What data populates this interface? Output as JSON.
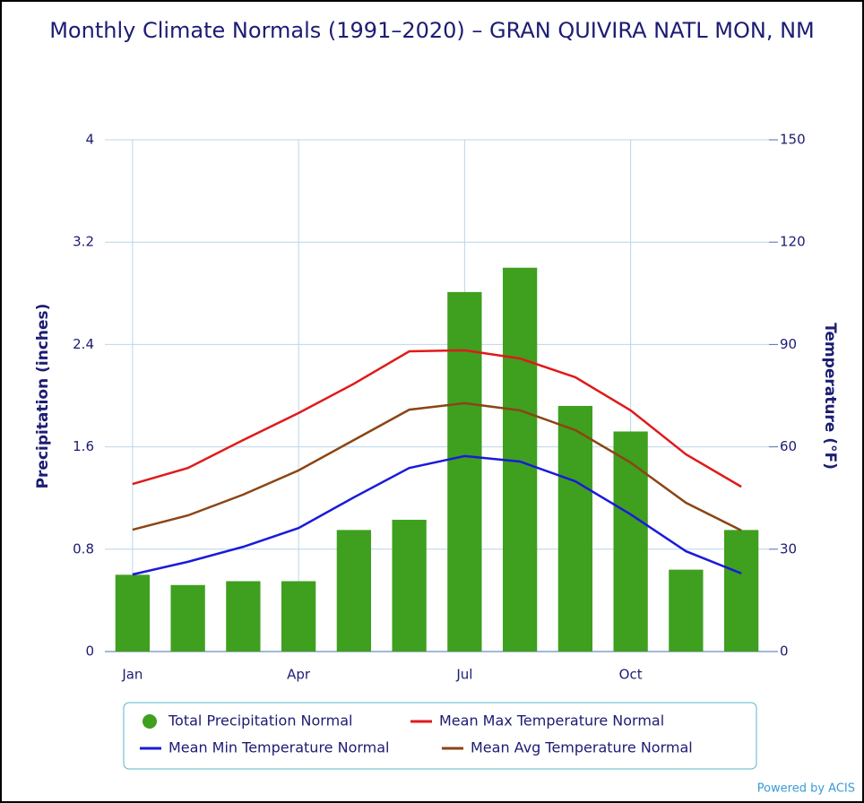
{
  "chart_data": {
    "type": "bar",
    "title": "Monthly Climate Normals (1991–2020) – GRAN QUIVIRA NATL MON, NM",
    "categories": [
      "Jan",
      null,
      null,
      "Apr",
      null,
      null,
      "Jul",
      null,
      null,
      "Oct",
      null,
      null
    ],
    "ylabel": "Precipitation (inches)",
    "y2label": "Temperature (°F)",
    "ylim": [
      0,
      4
    ],
    "yticks": [
      0,
      0.8,
      1.6,
      2.4,
      3.2,
      4
    ],
    "y2lim": [
      0,
      150
    ],
    "y2ticks": [
      0,
      30,
      60,
      90,
      120,
      150
    ],
    "grid": true,
    "series": [
      {
        "name": "Total Precipitation Normal",
        "type": "bar",
        "color": "#3f9f1f",
        "axis": "y",
        "values": [
          0.6,
          0.52,
          0.55,
          0.55,
          0.95,
          1.03,
          2.81,
          3.0,
          1.92,
          1.72,
          0.64,
          0.95
        ]
      },
      {
        "name": "Mean Max Temperature Normal",
        "type": "line",
        "color": "#e01a1a",
        "axis": "y2",
        "values": [
          49.1,
          53.8,
          62.0,
          69.9,
          78.5,
          88.0,
          88.3,
          85.9,
          80.4,
          70.7,
          57.8,
          48.3
        ]
      },
      {
        "name": "Mean Min Temperature Normal",
        "type": "line",
        "color": "#1a1adb",
        "axis": "y2",
        "values": [
          22.6,
          26.3,
          30.7,
          36.2,
          45.2,
          53.8,
          57.3,
          55.7,
          49.9,
          40.2,
          29.4,
          22.9
        ]
      },
      {
        "name": "Mean Avg Temperature Normal",
        "type": "line",
        "color": "#8b4513",
        "axis": "y2",
        "values": [
          35.7,
          39.9,
          46.0,
          53.1,
          62.0,
          70.9,
          72.8,
          70.7,
          64.9,
          55.4,
          43.6,
          35.5
        ]
      }
    ],
    "credit": "Powered by ACIS"
  }
}
